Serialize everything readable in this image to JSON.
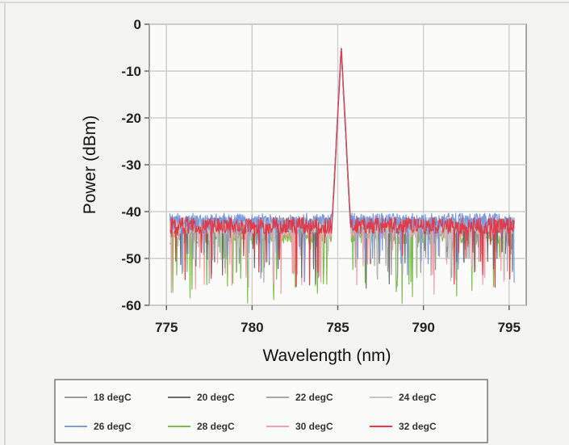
{
  "chart_data": {
    "type": "line",
    "xlabel": "Wavelength (nm)",
    "ylabel": "Power (dBm)",
    "xlim": [
      774,
      796
    ],
    "ylim": [
      -60,
      0
    ],
    "xticks": [
      775,
      780,
      785,
      790,
      795
    ],
    "yticks": [
      0,
      -10,
      -20,
      -30,
      -40,
      -50,
      -60
    ],
    "grid": true,
    "legend_position": "bottom",
    "peak": {
      "x": 785.2,
      "y": -5
    },
    "x_range": [
      775.2,
      795.3
    ],
    "noise_floor": -42,
    "series": [
      {
        "name": "18 degC",
        "color": "#9a9a9a"
      },
      {
        "name": "20 degC",
        "color": "#6a6a6a"
      },
      {
        "name": "22 degC",
        "color": "#aaaaaa"
      },
      {
        "name": "24 degC",
        "color": "#c4c4c4"
      },
      {
        "name": "26 degC",
        "color": "#7a9be0"
      },
      {
        "name": "28 degC",
        "color": "#7dbf4e"
      },
      {
        "name": "30 degC",
        "color": "#f2a0a8"
      },
      {
        "name": "32 degC",
        "color": "#e23a48"
      }
    ]
  }
}
